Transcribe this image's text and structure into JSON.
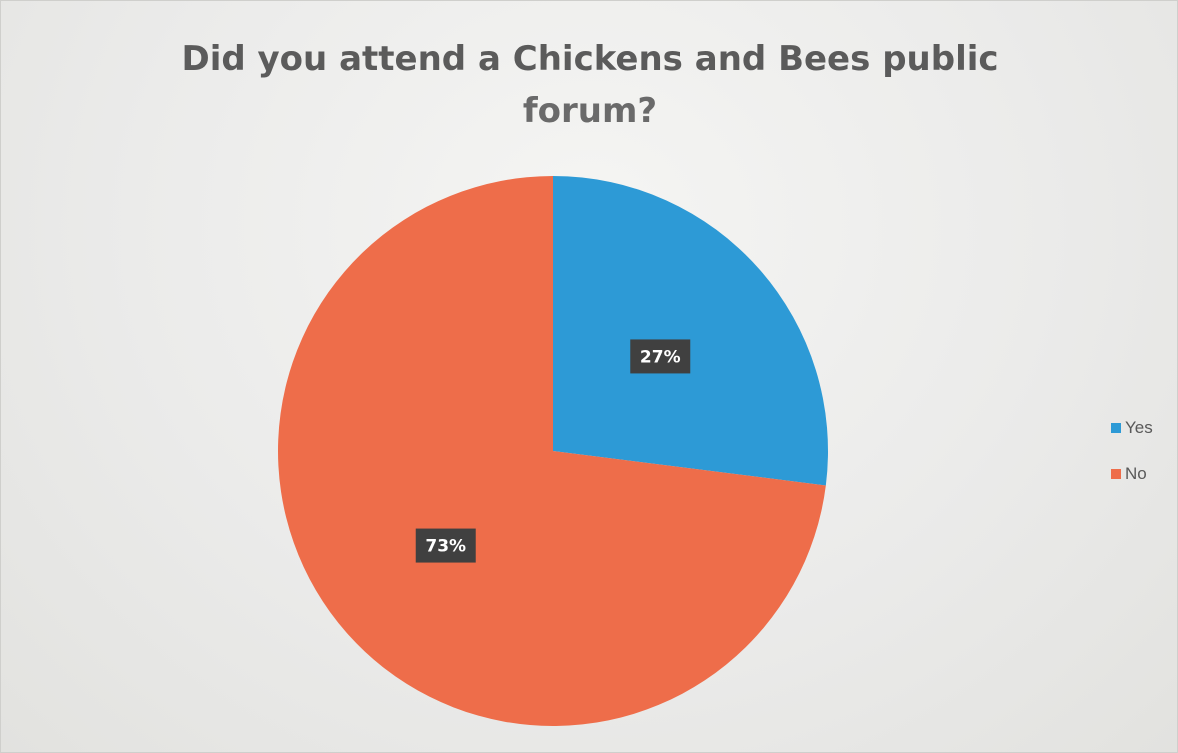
{
  "chart_data": {
    "type": "pie",
    "title_line1": "Did you attend a Chickens and Bees public",
    "title_line2": "forum?",
    "categories": [
      "Yes",
      "No"
    ],
    "values": [
      27,
      73
    ],
    "data_labels": [
      "27%",
      "73%"
    ],
    "colors": [
      "#2d9ad6",
      "#ee6d4a"
    ],
    "legend_placement": "right"
  }
}
